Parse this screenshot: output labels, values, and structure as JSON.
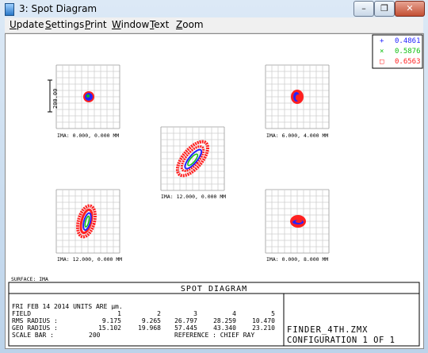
{
  "window": {
    "title": "3: Spot Diagram",
    "minimize_glyph": "–",
    "restore_glyph": "❐",
    "close_glyph": "✕"
  },
  "menu": [
    {
      "label": "Update",
      "accel": "U"
    },
    {
      "label": "Settings",
      "accel": "S"
    },
    {
      "label": "Print",
      "accel": "P"
    },
    {
      "label": "Window",
      "accel": "W"
    },
    {
      "label": "Text",
      "accel": "T"
    },
    {
      "label": "Zoom",
      "accel": "Z"
    }
  ],
  "legend": [
    {
      "wavelength": "0.4861",
      "symbol": "+",
      "color": "#2424ff"
    },
    {
      "wavelength": "0.5876",
      "symbol": "×",
      "color": "#10c010"
    },
    {
      "wavelength": "0.6563",
      "symbol": "□",
      "color": "#ff2020"
    }
  ],
  "scale_bar_label": "200.00",
  "fields": [
    {
      "ima": "IMA: 0.000, 0.000 MM"
    },
    {
      "ima": "IMA: 6.000, 4.000 MM"
    },
    {
      "ima": "IMA: 12.000, 0.000 MM"
    },
    {
      "ima": "IMA: 12.000, 0.000 MM"
    },
    {
      "ima": "IMA: 0.000, 8.000 MM"
    }
  ],
  "surface_label": "SURFACE: IMA",
  "diagram_title": "SPOT DIAGRAM",
  "info": {
    "date_line": "FRI FEB 14 2014  UNITS ARE µm.",
    "field_label": "FIELD",
    "field_values": [
      "1",
      "2",
      "3",
      "4",
      "5"
    ],
    "rms_label": "RMS RADIUS :",
    "rms_values": [
      "9.175",
      "9.265",
      "26.797",
      "28.259",
      "10.470"
    ],
    "geo_label": "GEO RADIUS :",
    "geo_values": [
      "15.102",
      "19.968",
      "57.445",
      "43.340",
      "23.210"
    ],
    "scale_label": "SCALE BAR  :",
    "scale_value": "200",
    "reference_label": "REFERENCE  : CHIEF RAY"
  },
  "file_name": "FINDER_4TH.ZMX",
  "configuration": "CONFIGURATION 1 OF 1"
}
